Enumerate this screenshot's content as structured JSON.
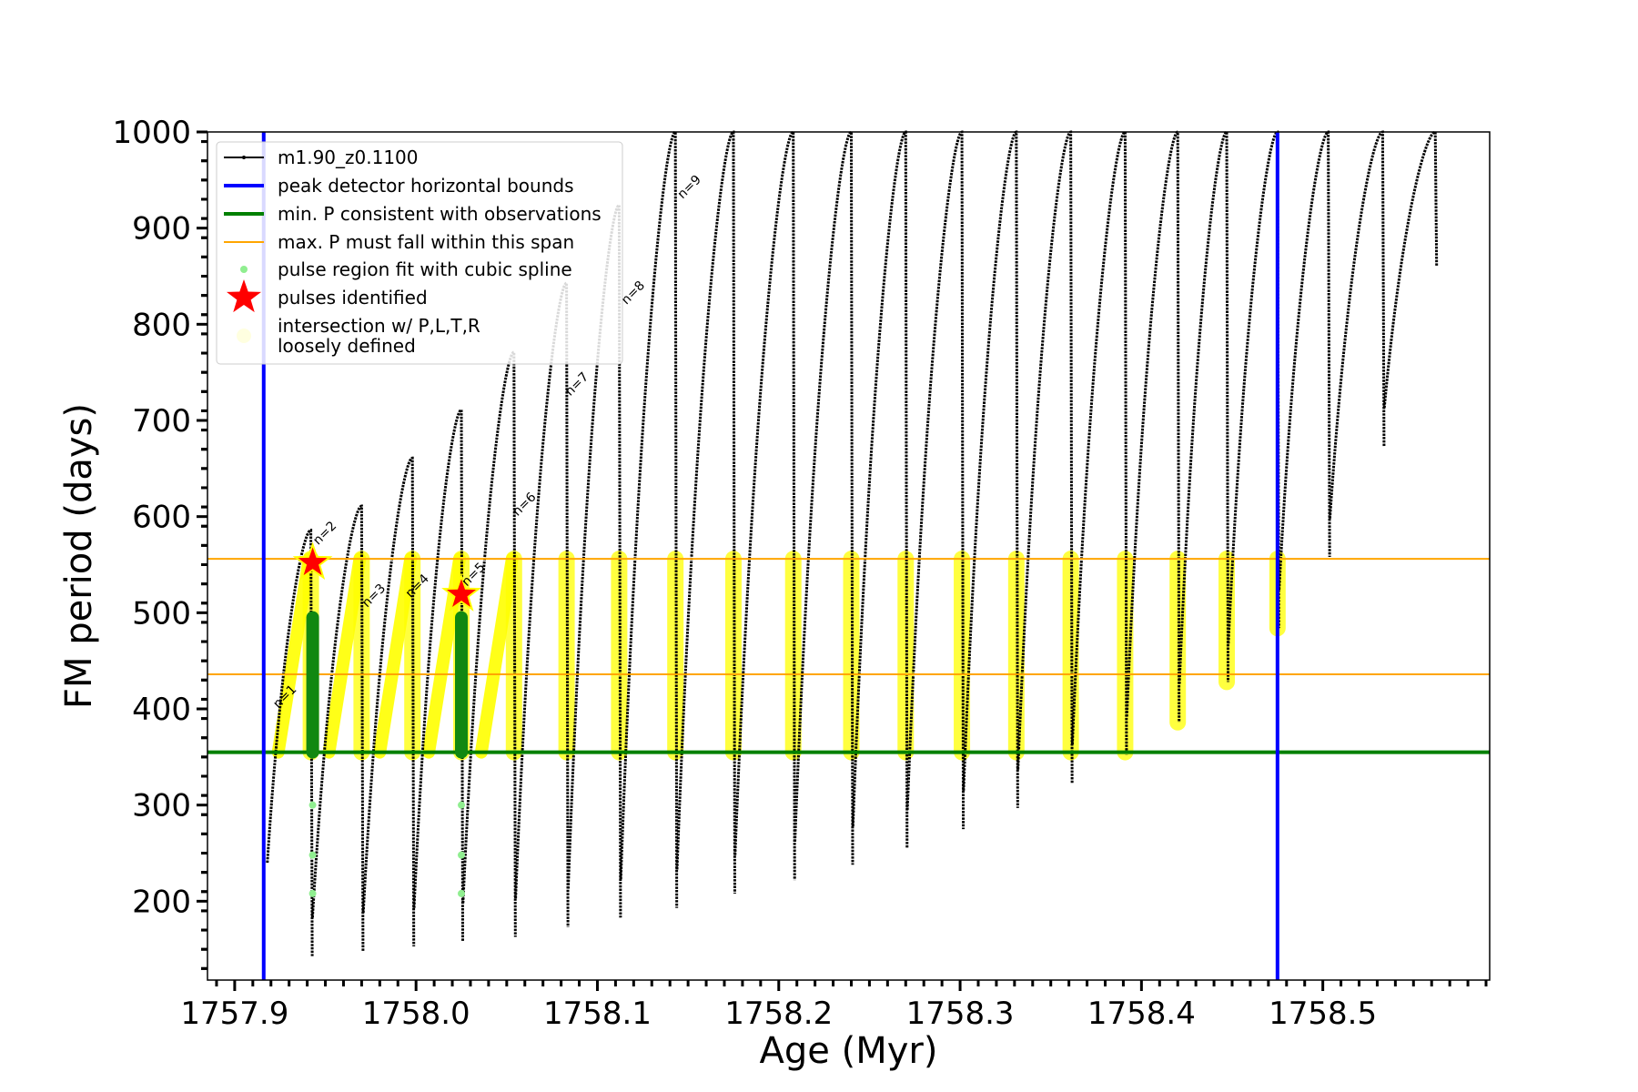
{
  "chart_data": {
    "type": "line",
    "title": "",
    "xlabel": "Age (Myr)",
    "ylabel": "FM period (days)",
    "xlim": [
      1757.885,
      1758.592
    ],
    "ylim": [
      118,
      1000
    ],
    "xticks": [
      1757.9,
      1758.0,
      1758.1,
      1758.2,
      1758.3,
      1758.4,
      1758.5
    ],
    "xtick_labels": [
      "1757.9",
      "1758.0",
      "1758.1",
      "1758.2",
      "1758.3",
      "1758.4",
      "1758.5"
    ],
    "yticks": [
      200,
      300,
      400,
      500,
      600,
      700,
      800,
      900,
      1000
    ],
    "ytick_labels": [
      "200",
      "300",
      "400",
      "500",
      "600",
      "700",
      "800",
      "900",
      "1000"
    ],
    "grid": false,
    "legend_position": "top-left",
    "colors": {
      "track": "#000000",
      "peak_bounds": "#0000ff",
      "min_period": "#008000",
      "max_period_span": "#ffa500",
      "spline_fit": "#90ee90",
      "pulses": "#ff0000",
      "intersection": "#ffff00",
      "loose": "#ffffe0"
    },
    "legend": [
      {
        "label": "m1.90_z0.1100",
        "style": "track"
      },
      {
        "label": "peak detector horizontal bounds",
        "style": "peak_bounds"
      },
      {
        "label": "min. P consistent with observations",
        "style": "min_period"
      },
      {
        "label": "max. P must fall within this span",
        "style": "max_period_span"
      },
      {
        "label": "pulse region fit with cubic spline",
        "style": "spline_fit"
      },
      {
        "label": "pulses identified",
        "style": "pulses"
      },
      {
        "label": "intersection w/ P,L,T,R",
        "style": "intersection"
      },
      {
        "label": "loosely defined",
        "style": "loose"
      }
    ],
    "peak_detector_bounds_x": [
      1757.916,
      1758.475
    ],
    "min_period": 355,
    "max_period_span": [
      436,
      556
    ],
    "pulses": [
      {
        "age": 1757.942,
        "period": 586,
        "min": 143
      },
      {
        "age": 1757.97,
        "period": 611,
        "min": 148
      },
      {
        "age": 1757.998,
        "period": 661,
        "min": 153
      },
      {
        "age": 1758.025,
        "period": 711,
        "min": 158
      },
      {
        "age": 1758.054,
        "period": 771,
        "min": 163
      },
      {
        "age": 1758.083,
        "period": 843,
        "min": 173
      },
      {
        "age": 1758.112,
        "period": 924,
        "min": 183
      },
      {
        "age": 1758.143,
        "period": 1000,
        "min": 193
      },
      {
        "age": 1758.175,
        "period": 1000,
        "min": 208
      },
      {
        "age": 1758.208,
        "period": 1000,
        "min": 222
      },
      {
        "age": 1758.24,
        "period": 1000,
        "min": 238
      },
      {
        "age": 1758.27,
        "period": 1000,
        "min": 255
      },
      {
        "age": 1758.301,
        "period": 1000,
        "min": 275
      },
      {
        "age": 1758.331,
        "period": 1000,
        "min": 297
      },
      {
        "age": 1758.361,
        "period": 1000,
        "min": 323
      },
      {
        "age": 1758.391,
        "period": 1000,
        "min": 352
      },
      {
        "age": 1758.42,
        "period": 1000,
        "min": 386
      },
      {
        "age": 1758.447,
        "period": 1000,
        "min": 428
      },
      {
        "age": 1758.475,
        "period": 1000,
        "min": 484
      },
      {
        "age": 1758.503,
        "period": 1000,
        "min": 558
      },
      {
        "age": 1758.533,
        "period": 1000,
        "min": 673
      },
      {
        "age": 1758.562,
        "period": 1000,
        "min": 860
      }
    ],
    "first_track_start": {
      "age": 1757.918,
      "period": 240
    },
    "pulses_identified": [
      {
        "age": 1757.943,
        "period": 552
      },
      {
        "age": 1758.025,
        "period": 519
      }
    ],
    "pulse_labels": [
      {
        "text": "n=1",
        "age": 1757.924,
        "period": 400
      },
      {
        "text": "n=2",
        "age": 1757.946,
        "period": 570
      },
      {
        "text": "n=3",
        "age": 1757.973,
        "period": 505
      },
      {
        "text": "n=4",
        "age": 1757.997,
        "period": 515
      },
      {
        "text": "n=5",
        "age": 1758.028,
        "period": 527
      },
      {
        "text": "n=6",
        "age": 1758.056,
        "period": 600
      },
      {
        "text": "n=7",
        "age": 1758.085,
        "period": 725
      },
      {
        "text": "n=8",
        "age": 1758.116,
        "period": 820
      },
      {
        "text": "n=9",
        "age": 1758.147,
        "period": 930
      }
    ]
  }
}
